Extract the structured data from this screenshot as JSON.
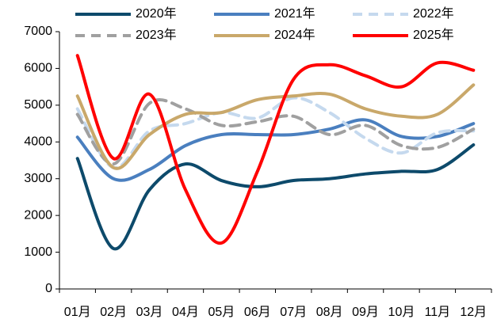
{
  "chart_data": {
    "type": "line",
    "categories": [
      "01月",
      "02月",
      "03月",
      "04月",
      "05月",
      "06月",
      "07月",
      "08月",
      "09月",
      "10月",
      "11月",
      "12月"
    ],
    "series": [
      {
        "name": "2020年",
        "color": "#0d4a6b",
        "dash": false,
        "values": [
          3550,
          1100,
          2700,
          3400,
          2950,
          2780,
          2950,
          3000,
          3130,
          3200,
          3250,
          3920
        ]
      },
      {
        "name": "2021年",
        "color": "#4a7fbf",
        "dash": false,
        "values": [
          4130,
          3000,
          3250,
          3900,
          4200,
          4200,
          4200,
          4350,
          4600,
          4150,
          4150,
          4500
        ]
      },
      {
        "name": "2022年",
        "color": "#c5d9ee",
        "dash": true,
        "values": [
          4900,
          3300,
          4300,
          4500,
          4800,
          4650,
          5200,
          4800,
          4100,
          3700,
          4250,
          4300
        ]
      },
      {
        "name": "2023年",
        "color": "#a0a0a0",
        "dash": true,
        "values": [
          4750,
          3400,
          5050,
          4900,
          4450,
          4550,
          4700,
          4200,
          4450,
          3900,
          3850,
          4350
        ]
      },
      {
        "name": "2024年",
        "color": "#c9a86a",
        "dash": false,
        "values": [
          5250,
          3300,
          4200,
          4750,
          4800,
          5150,
          5250,
          5300,
          4900,
          4700,
          4750,
          5550
        ]
      },
      {
        "name": "2025年",
        "color": "#ff0000",
        "dash": false,
        "values": [
          6350,
          3550,
          5300,
          2700,
          1250,
          3200,
          5700,
          6100,
          5800,
          5500,
          6150,
          5950
        ]
      }
    ],
    "ylim": [
      0,
      7000
    ],
    "yticks": [
      0,
      1000,
      2000,
      3000,
      4000,
      5000,
      6000,
      7000
    ]
  }
}
